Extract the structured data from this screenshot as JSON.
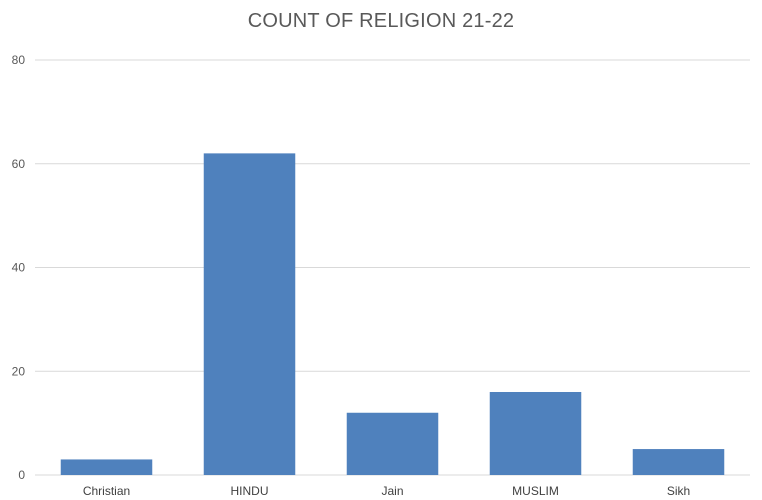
{
  "chart_data": {
    "type": "bar",
    "title": "COUNT OF RELIGION 21-22",
    "categories": [
      "Christian",
      "HINDU",
      "Jain",
      "MUSLIM",
      "Sikh"
    ],
    "values": [
      3,
      62,
      12,
      16,
      5
    ],
    "xlabel": "",
    "ylabel": "",
    "ylim": [
      0,
      80
    ],
    "yticks": [
      0,
      20,
      40,
      60,
      80
    ],
    "grid": true,
    "legend": "none",
    "bar_color": "#4f81bd",
    "grid_color": "#d9d9d9"
  }
}
